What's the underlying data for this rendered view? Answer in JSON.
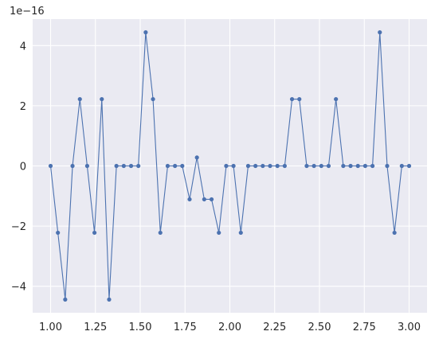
{
  "chart_data": {
    "type": "line",
    "title": "",
    "xlabel": "",
    "ylabel": "",
    "offset_text": "1e−16",
    "xlim": [
      0.9,
      3.1
    ],
    "ylim": [
      -4.88,
      4.88
    ],
    "xticks": [
      1.0,
      1.25,
      1.5,
      1.75,
      2.0,
      2.25,
      2.5,
      2.75,
      3.0
    ],
    "xtick_labels": [
      "1.00",
      "1.25",
      "1.50",
      "1.75",
      "2.00",
      "2.25",
      "2.50",
      "2.75",
      "3.00"
    ],
    "yticks": [
      -4,
      -2,
      0,
      2,
      4
    ],
    "ytick_labels": [
      "−4",
      "−2",
      "0",
      "2",
      "4"
    ],
    "grid": true,
    "colors": {
      "background": "#eaeaf2",
      "grid": "#ffffff",
      "series": "#4c72b0"
    },
    "series": [
      {
        "marker": "circle",
        "x": [
          1.0,
          1.0408,
          1.0816,
          1.1224,
          1.1633,
          1.2041,
          1.2449,
          1.2857,
          1.3265,
          1.3673,
          1.4082,
          1.449,
          1.4898,
          1.5306,
          1.5714,
          1.6122,
          1.6531,
          1.6939,
          1.7347,
          1.7755,
          1.8163,
          1.8571,
          1.898,
          1.9388,
          1.9796,
          2.0204,
          2.0612,
          2.102,
          2.1429,
          2.1837,
          2.2245,
          2.2653,
          2.3061,
          2.3469,
          2.3878,
          2.4286,
          2.4694,
          2.5102,
          2.551,
          2.5918,
          2.6327,
          2.6735,
          2.7143,
          2.7551,
          2.7959,
          2.8367,
          2.8776,
          2.9184,
          2.9592,
          3.0
        ],
        "y": [
          0,
          -2.22,
          -4.44,
          0,
          2.22,
          0,
          -2.22,
          2.22,
          -4.44,
          0,
          0,
          0,
          0,
          4.44,
          2.22,
          -2.22,
          0,
          0,
          0,
          -1.11,
          0.28,
          -1.11,
          -1.11,
          -2.22,
          0,
          0,
          -2.22,
          0,
          0,
          0,
          0,
          0,
          0,
          2.22,
          2.22,
          0,
          0,
          0,
          0,
          2.22,
          0,
          0,
          0,
          0,
          0,
          4.44,
          0,
          -2.22,
          0,
          0
        ]
      }
    ]
  }
}
